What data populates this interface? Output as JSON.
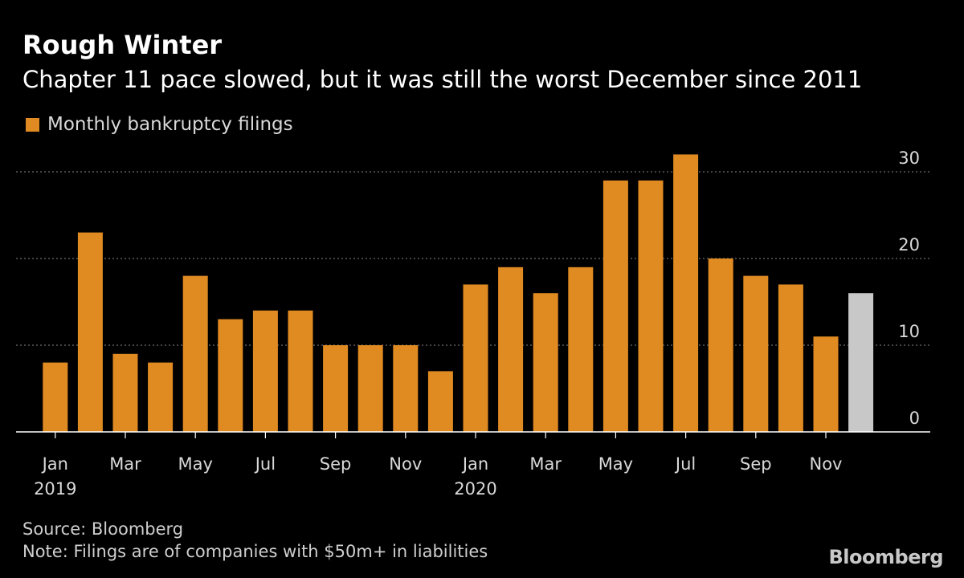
{
  "chart_data": {
    "type": "bar",
    "title": "Rough Winter",
    "subtitle": "Chapter 11 pace slowed, but it was still the worst December since 2011",
    "legend": [
      {
        "label": "Monthly bankruptcy filings",
        "color": "#e08a22"
      }
    ],
    "highlight_color": "#c8c8c8",
    "categories": [
      "Jan 2019",
      "Feb 2019",
      "Mar 2019",
      "Apr 2019",
      "May 2019",
      "Jun 2019",
      "Jul 2019",
      "Aug 2019",
      "Sep 2019",
      "Oct 2019",
      "Nov 2019",
      "Dec 2019",
      "Jan 2020",
      "Feb 2020",
      "Mar 2020",
      "Apr 2020",
      "May 2020",
      "Jun 2020",
      "Jul 2020",
      "Aug 2020",
      "Sep 2020",
      "Oct 2020",
      "Nov 2020",
      "Dec 2020"
    ],
    "values": [
      8,
      23,
      9,
      8,
      18,
      13,
      14,
      14,
      10,
      10,
      10,
      7,
      17,
      19,
      16,
      19,
      29,
      29,
      32,
      20,
      18,
      17,
      11,
      16
    ],
    "highlight_index": 23,
    "ylim": [
      0,
      30
    ],
    "yticks": [
      "0",
      "10",
      "20",
      "30"
    ],
    "ytick_values": [
      0,
      10,
      20,
      30
    ],
    "xticks": [
      {
        "index": 0,
        "label": "Jan",
        "year": "2019"
      },
      {
        "index": 2,
        "label": "Mar",
        "year": ""
      },
      {
        "index": 4,
        "label": "May",
        "year": ""
      },
      {
        "index": 6,
        "label": "Jul",
        "year": ""
      },
      {
        "index": 8,
        "label": "Sep",
        "year": ""
      },
      {
        "index": 10,
        "label": "Nov",
        "year": ""
      },
      {
        "index": 12,
        "label": "Jan",
        "year": "2020"
      },
      {
        "index": 14,
        "label": "Mar",
        "year": ""
      },
      {
        "index": 16,
        "label": "May",
        "year": ""
      },
      {
        "index": 18,
        "label": "Jul",
        "year": ""
      },
      {
        "index": 20,
        "label": "Sep",
        "year": ""
      },
      {
        "index": 22,
        "label": "Nov",
        "year": ""
      }
    ],
    "grid": true,
    "xlabel": "",
    "ylabel": ""
  },
  "footer": {
    "source": "Source: Bloomberg",
    "note": "Note: Filings are of companies with $50m+ in liabilities",
    "brand": "Bloomberg"
  }
}
